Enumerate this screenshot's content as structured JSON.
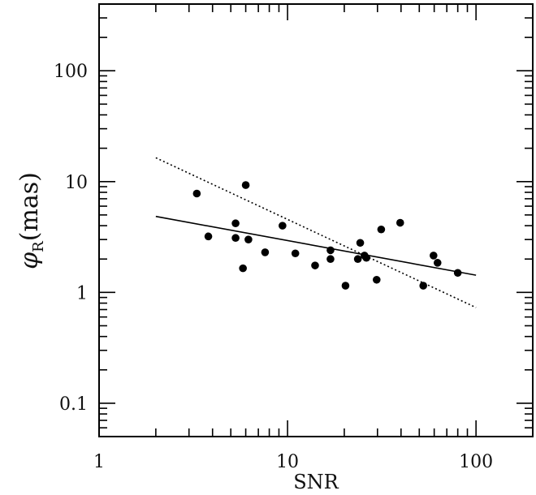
{
  "chart_data": {
    "type": "scatter",
    "title": "",
    "xlabel": "SNR",
    "ylabel": {
      "symbol": "φ",
      "subscript": "R",
      "unit": "(mas)"
    },
    "xscale": "log",
    "yscale": "log",
    "xlim": [
      1,
      200
    ],
    "ylim": [
      0.05,
      400
    ],
    "grid": false,
    "legend": "none",
    "x_ticks": [
      1,
      10,
      100
    ],
    "x_tick_labels": [
      "1",
      "10",
      "100"
    ],
    "y_ticks": [
      0.1,
      1,
      10,
      100
    ],
    "y_tick_labels": [
      "0.1",
      "1",
      "10",
      "100"
    ],
    "series": [
      {
        "kind": "points",
        "color": "#000000",
        "points": [
          {
            "x": 3.3,
            "y": 7.8
          },
          {
            "x": 3.8,
            "y": 3.2
          },
          {
            "x": 5.3,
            "y": 4.2
          },
          {
            "x": 5.3,
            "y": 3.1
          },
          {
            "x": 5.8,
            "y": 1.65
          },
          {
            "x": 6.0,
            "y": 9.3
          },
          {
            "x": 6.2,
            "y": 3.0
          },
          {
            "x": 7.6,
            "y": 2.3
          },
          {
            "x": 9.4,
            "y": 4.0
          },
          {
            "x": 11.0,
            "y": 2.25
          },
          {
            "x": 14.0,
            "y": 1.75
          },
          {
            "x": 16.9,
            "y": 2.4
          },
          {
            "x": 16.9,
            "y": 2.0
          },
          {
            "x": 20.3,
            "y": 1.15
          },
          {
            "x": 23.6,
            "y": 2.0
          },
          {
            "x": 24.3,
            "y": 2.8
          },
          {
            "x": 25.6,
            "y": 2.15
          },
          {
            "x": 26.2,
            "y": 2.05
          },
          {
            "x": 29.7,
            "y": 1.3
          },
          {
            "x": 31.4,
            "y": 3.7
          },
          {
            "x": 39.6,
            "y": 4.25
          },
          {
            "x": 52.5,
            "y": 1.15
          },
          {
            "x": 59.5,
            "y": 2.15
          },
          {
            "x": 62.5,
            "y": 1.85
          },
          {
            "x": 80.0,
            "y": 1.5
          }
        ]
      },
      {
        "kind": "line",
        "style": "solid",
        "color": "#000000",
        "points": [
          {
            "x": 2.0,
            "y": 4.85
          },
          {
            "x": 100.0,
            "y": 1.43
          }
        ]
      },
      {
        "kind": "line",
        "style": "dotted",
        "color": "#000000",
        "points": [
          {
            "x": 2.0,
            "y": 16.4
          },
          {
            "x": 100.0,
            "y": 0.73
          }
        ]
      }
    ]
  }
}
